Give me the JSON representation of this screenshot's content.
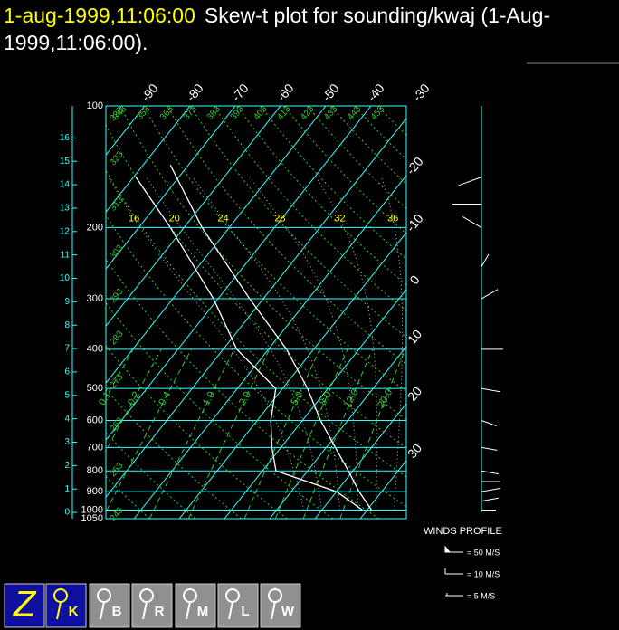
{
  "chart_data": {
    "type": "skew-t",
    "date": "1-aug-1999,11:06:00",
    "title": "Skew-t plot for sounding/kwaj (1-Aug-1999,11:06:00).",
    "ylim": [
      100,
      1050
    ],
    "yticks": [
      100,
      200,
      300,
      400,
      500,
      600,
      700,
      800,
      900,
      1000,
      1050
    ],
    "height_ticks": [
      0,
      1,
      2,
      3,
      4,
      5,
      6,
      7,
      8,
      9,
      10,
      11,
      12,
      13,
      14,
      15,
      16
    ],
    "temperature_ticks": [
      -90,
      -80,
      -70,
      -60,
      -50,
      -40,
      -30,
      -20,
      -10,
      0,
      10,
      20,
      30
    ],
    "dry_adiabats": [
      243,
      253,
      263,
      273,
      283,
      293,
      303,
      313,
      323,
      333,
      343,
      353,
      363,
      373,
      383,
      393,
      403,
      413,
      423,
      433,
      443,
      453
    ],
    "mixing_ratios": [
      0.1,
      0.2,
      0.4,
      {
        "value": 1,
        "label": "1.0"
      },
      {
        "value": 2,
        "label": "2.0"
      },
      {
        "value": 5,
        "label": "5.0"
      },
      {
        "value": 8,
        "label": "8.0"
      },
      {
        "value": 12,
        "label": "12.0"
      },
      {
        "value": 20,
        "label": "20.0"
      }
    ],
    "moist_adiabats": [
      16,
      20,
      24,
      28,
      32,
      36
    ],
    "series": [
      {
        "color": "#ffffff",
        "pressure": [
          1000,
          900,
          800,
          700,
          600,
          500,
          400,
          300,
          200,
          140
        ],
        "values": [
          31,
          25,
          19,
          12,
          4,
          -4.5,
          -16,
          -33,
          -56,
          -74
        ]
      },
      {
        "color": "#ffffff",
        "pressure": [
          1000,
          900,
          800,
          700,
          600,
          500,
          400,
          300,
          200,
          150
        ],
        "values": [
          29,
          20,
          3,
          -2,
          -7,
          -11.5,
          -27,
          -41,
          -63,
          -79.5
        ]
      }
    ],
    "winds": {
      "pressure": [
        1000,
        950,
        900,
        850,
        800,
        700,
        600,
        500,
        400,
        300,
        250,
        200,
        175,
        150
      ],
      "speed": [
        5,
        7,
        8,
        8,
        7,
        6,
        6,
        8,
        10,
        8,
        5,
        10,
        15,
        12
      ],
      "direction": [
        90,
        80,
        80,
        90,
        100,
        100,
        110,
        100,
        90,
        60,
        30,
        300,
        270,
        250
      ]
    },
    "wind_legend": {
      "title": "WINDS PROFILE",
      "entries": [
        "= 50 M/S",
        "= 10 M/S",
        "= 5 M/S"
      ]
    }
  },
  "toolbar": {
    "buttons": [
      "Z",
      "K",
      "B",
      "R",
      "M",
      "L",
      "W"
    ]
  }
}
